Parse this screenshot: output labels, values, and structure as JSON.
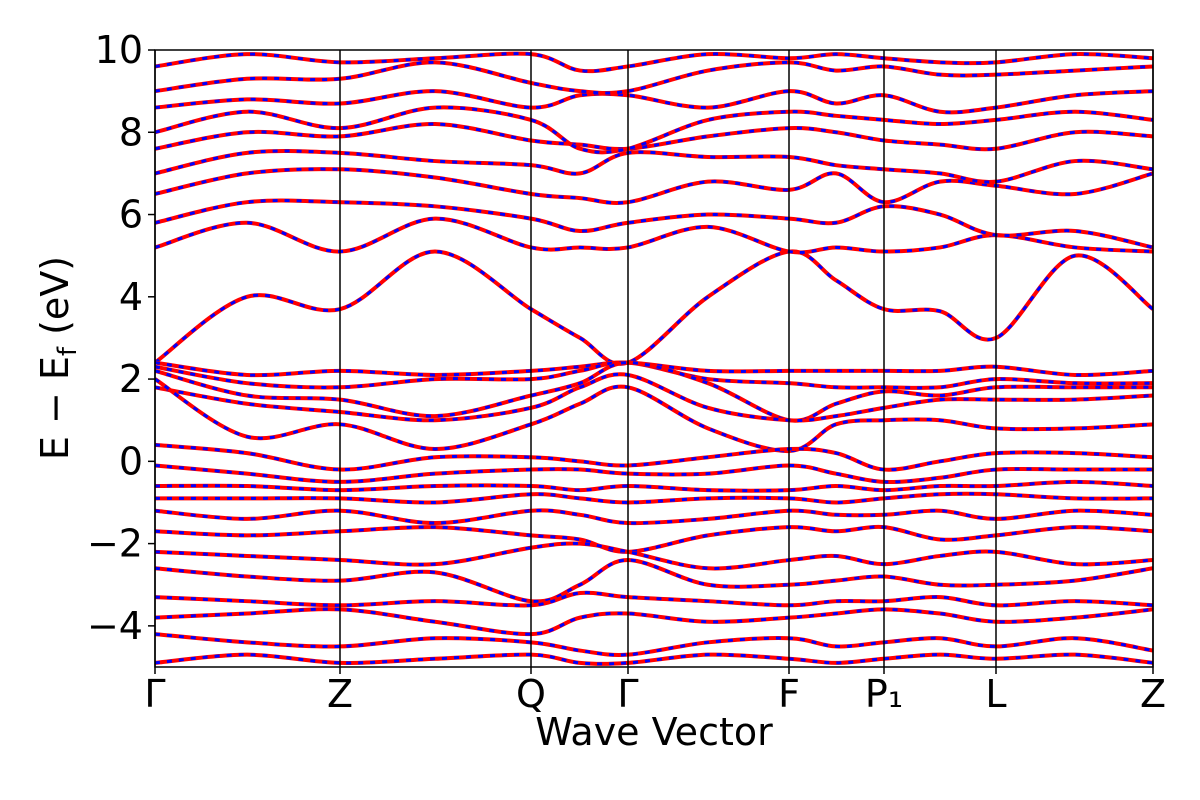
{
  "chart_data": {
    "type": "line",
    "xlabel": "Wave Vector",
    "ylabel": [
      "E − E",
      "f",
      " (eV)"
    ],
    "xlim": [
      0,
      998
    ],
    "ylim": [
      -5,
      10
    ],
    "xticks": [
      {
        "value": 0,
        "label": "Γ"
      },
      {
        "value": 185,
        "label": "Z"
      },
      {
        "value": 376,
        "label": "Q"
      },
      {
        "value": 473,
        "label": "Γ"
      },
      {
        "value": 634,
        "label": "F"
      },
      {
        "value": 729,
        "label": "P₁"
      },
      {
        "value": 841,
        "label": "L"
      },
      {
        "value": 998,
        "label": "Z"
      }
    ],
    "yticks": [
      {
        "value": -4,
        "label": "−4"
      },
      {
        "value": -2,
        "label": "−2"
      },
      0,
      2,
      4,
      6,
      8,
      10
    ],
    "line_color": "#ff0000",
    "dash_color": "#0000ff",
    "x": [
      0,
      92,
      185,
      280,
      376,
      425,
      473,
      553,
      634,
      681,
      729,
      785,
      841,
      920,
      998
    ],
    "series": [
      {
        "values": [
          2.4,
          4.0,
          3.7,
          5.1,
          3.7,
          3.0,
          2.4,
          4.0,
          5.1,
          4.4,
          3.7,
          3.65,
          3.0,
          5.0,
          3.7
        ]
      },
      {
        "values": [
          5.2,
          5.8,
          5.1,
          5.9,
          5.2,
          5.2,
          5.2,
          5.7,
          5.1,
          5.2,
          5.1,
          5.2,
          5.5,
          5.2,
          5.1
        ]
      },
      {
        "values": [
          5.8,
          6.3,
          6.3,
          6.2,
          5.9,
          5.6,
          5.8,
          6.0,
          5.9,
          5.8,
          6.2,
          6.0,
          5.5,
          5.6,
          5.2
        ]
      },
      {
        "values": [
          6.5,
          7.0,
          7.1,
          6.9,
          6.5,
          6.4,
          6.3,
          6.8,
          6.6,
          7.0,
          6.3,
          6.8,
          6.7,
          6.5,
          7.0
        ]
      },
      {
        "values": [
          7.0,
          7.5,
          7.5,
          7.3,
          7.2,
          7.0,
          7.5,
          7.4,
          7.4,
          7.2,
          7.1,
          7.0,
          6.8,
          7.3,
          7.1
        ]
      },
      {
        "values": [
          7.6,
          8.0,
          7.9,
          8.2,
          7.8,
          7.7,
          7.6,
          7.9,
          8.1,
          8.0,
          7.8,
          7.7,
          7.6,
          8.0,
          7.9
        ]
      },
      {
        "values": [
          8.0,
          8.5,
          8.1,
          8.6,
          8.3,
          7.6,
          7.6,
          8.3,
          8.5,
          8.4,
          8.3,
          8.2,
          8.3,
          8.5,
          8.3
        ]
      },
      {
        "values": [
          8.6,
          8.8,
          8.7,
          9.0,
          8.6,
          8.9,
          8.9,
          8.6,
          9.0,
          8.7,
          8.9,
          8.5,
          8.6,
          8.9,
          9.0
        ]
      },
      {
        "values": [
          9.0,
          9.3,
          9.3,
          9.7,
          9.2,
          9.0,
          9.0,
          9.5,
          9.7,
          9.5,
          9.6,
          9.4,
          9.4,
          9.5,
          9.6
        ]
      },
      {
        "values": [
          9.6,
          9.9,
          9.7,
          9.8,
          9.9,
          9.5,
          9.6,
          9.9,
          9.8,
          9.9,
          9.8,
          9.7,
          9.7,
          9.9,
          9.8
        ]
      },
      {
        "values": [
          2.4,
          2.1,
          2.2,
          2.1,
          2.2,
          2.3,
          2.4,
          2.2,
          2.2,
          2.2,
          2.2,
          2.2,
          2.3,
          2.1,
          2.2
        ]
      },
      {
        "values": [
          2.3,
          1.9,
          1.8,
          2.0,
          2.0,
          2.2,
          2.4,
          2.0,
          1.9,
          1.8,
          1.8,
          1.8,
          2.0,
          1.9,
          1.9
        ]
      },
      {
        "values": [
          2.2,
          1.6,
          1.5,
          1.1,
          1.6,
          1.9,
          2.4,
          1.9,
          1.0,
          1.4,
          1.7,
          1.6,
          1.8,
          1.8,
          1.8
        ]
      },
      {
        "values": [
          1.8,
          1.4,
          1.2,
          1.0,
          1.3,
          1.8,
          2.1,
          1.3,
          1.0,
          1.1,
          1.3,
          1.5,
          1.5,
          1.5,
          1.6
        ]
      },
      {
        "values": [
          2.0,
          0.6,
          0.9,
          0.3,
          0.9,
          1.4,
          1.8,
          0.8,
          0.25,
          0.9,
          1.0,
          1.0,
          0.8,
          0.8,
          0.9
        ]
      },
      {
        "values": [
          0.4,
          0.2,
          -0.2,
          0.1,
          0.1,
          0.0,
          -0.1,
          0.1,
          0.3,
          0.2,
          -0.2,
          0.0,
          0.2,
          0.2,
          0.1
        ]
      },
      {
        "values": [
          -0.1,
          -0.3,
          -0.5,
          -0.3,
          -0.2,
          -0.2,
          -0.3,
          -0.3,
          -0.1,
          -0.3,
          -0.5,
          -0.4,
          -0.2,
          -0.2,
          -0.2
        ]
      },
      {
        "values": [
          -0.6,
          -0.6,
          -0.7,
          -0.6,
          -0.6,
          -0.7,
          -0.6,
          -0.7,
          -0.7,
          -0.6,
          -0.7,
          -0.6,
          -0.6,
          -0.5,
          -0.6
        ]
      },
      {
        "values": [
          -0.9,
          -0.9,
          -0.9,
          -1.0,
          -0.8,
          -0.9,
          -1.0,
          -0.9,
          -0.9,
          -1.0,
          -0.9,
          -0.8,
          -0.8,
          -0.9,
          -0.9
        ]
      },
      {
        "values": [
          -1.2,
          -1.4,
          -1.2,
          -1.5,
          -1.2,
          -1.3,
          -1.5,
          -1.4,
          -1.2,
          -1.3,
          -1.3,
          -1.2,
          -1.4,
          -1.2,
          -1.3
        ]
      },
      {
        "values": [
          -1.7,
          -1.8,
          -1.7,
          -1.6,
          -1.8,
          -1.9,
          -2.2,
          -1.8,
          -1.6,
          -1.7,
          -1.6,
          -1.9,
          -1.8,
          -1.6,
          -1.7
        ]
      },
      {
        "values": [
          -2.2,
          -2.3,
          -2.4,
          -2.5,
          -2.1,
          -2.0,
          -2.2,
          -2.6,
          -2.4,
          -2.3,
          -2.5,
          -2.3,
          -2.2,
          -2.5,
          -2.4
        ]
      },
      {
        "values": [
          -2.6,
          -2.8,
          -2.9,
          -2.7,
          -3.4,
          -3.0,
          -2.4,
          -3.0,
          -3.0,
          -2.9,
          -2.8,
          -3.0,
          -3.0,
          -2.9,
          -2.6
        ]
      },
      {
        "values": [
          -3.3,
          -3.4,
          -3.5,
          -3.4,
          -3.5,
          -3.2,
          -3.3,
          -3.4,
          -3.5,
          -3.4,
          -3.4,
          -3.3,
          -3.5,
          -3.4,
          -3.5
        ]
      },
      {
        "values": [
          -3.8,
          -3.7,
          -3.6,
          -3.9,
          -4.2,
          -3.8,
          -3.7,
          -3.9,
          -3.8,
          -3.7,
          -3.6,
          -3.7,
          -3.9,
          -3.8,
          -3.6
        ]
      },
      {
        "values": [
          -4.2,
          -4.4,
          -4.5,
          -4.3,
          -4.4,
          -4.6,
          -4.7,
          -4.4,
          -4.3,
          -4.5,
          -4.4,
          -4.3,
          -4.5,
          -4.3,
          -4.6
        ]
      },
      {
        "values": [
          -4.9,
          -4.7,
          -4.9,
          -4.8,
          -4.7,
          -4.9,
          -4.9,
          -4.7,
          -4.8,
          -4.9,
          -4.8,
          -4.7,
          -4.8,
          -4.7,
          -4.9
        ]
      }
    ]
  }
}
